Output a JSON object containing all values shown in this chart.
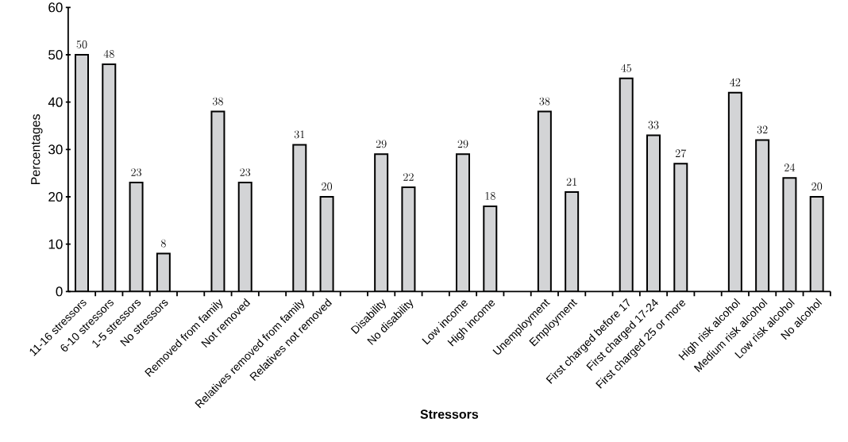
{
  "chart_data": {
    "type": "bar",
    "xlabel": "Stressors",
    "ylabel": "Percentages",
    "categories": [
      "11-16 stressors",
      "6-10 stressors",
      "1-5 stressors",
      "No stressors",
      null,
      "Removed from family",
      "Not removed",
      null,
      "Relatives removed from family",
      "Relatives not removed",
      null,
      "Disability",
      "No disability",
      null,
      "Low income",
      "High income",
      null,
      "Unemployment",
      "Employment",
      null,
      "First charged before 17",
      "First charged 17-24",
      "First charged 25 or more",
      null,
      "High risk alcohol",
      "Medium risk alcohol",
      "Low risk alcohol",
      "No alcohol"
    ],
    "values": [
      50,
      48,
      23,
      8,
      null,
      38,
      23,
      null,
      31,
      20,
      null,
      29,
      22,
      null,
      29,
      18,
      null,
      38,
      21,
      null,
      45,
      33,
      27,
      null,
      42,
      32,
      24,
      20
    ],
    "color": "#d3d4d6",
    "ylim": [
      0,
      60
    ],
    "yticks": [
      0,
      10,
      20,
      30,
      40,
      50,
      60
    ],
    "data_labels": true,
    "grid": false
  }
}
